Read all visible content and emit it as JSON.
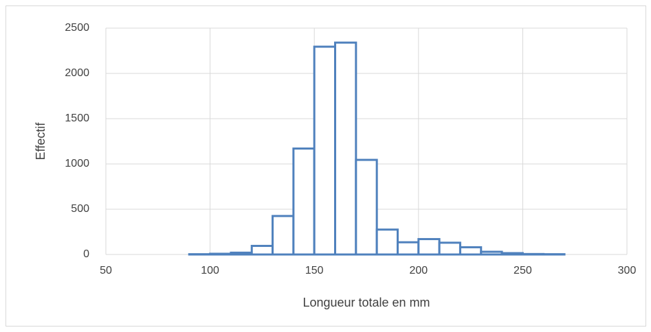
{
  "chart_data": {
    "type": "histogram",
    "xlabel": "Longueur totale en mm",
    "ylabel": "Effectif",
    "bins": [
      90,
      100,
      110,
      120,
      130,
      140,
      150,
      160,
      170,
      180,
      190,
      200,
      210,
      220,
      230,
      240,
      250,
      260,
      270
    ],
    "values": [
      3,
      8,
      20,
      95,
      425,
      1170,
      2295,
      2340,
      1045,
      275,
      135,
      170,
      130,
      80,
      30,
      15,
      5,
      3
    ],
    "color": "#4f81bd",
    "xlim": [
      50,
      300
    ],
    "xticks": [
      50,
      100,
      150,
      200,
      250,
      300
    ],
    "ylim": [
      0,
      2500
    ],
    "yticks": [
      0,
      500,
      1000,
      1500,
      2000,
      2500
    ],
    "grid": true
  }
}
